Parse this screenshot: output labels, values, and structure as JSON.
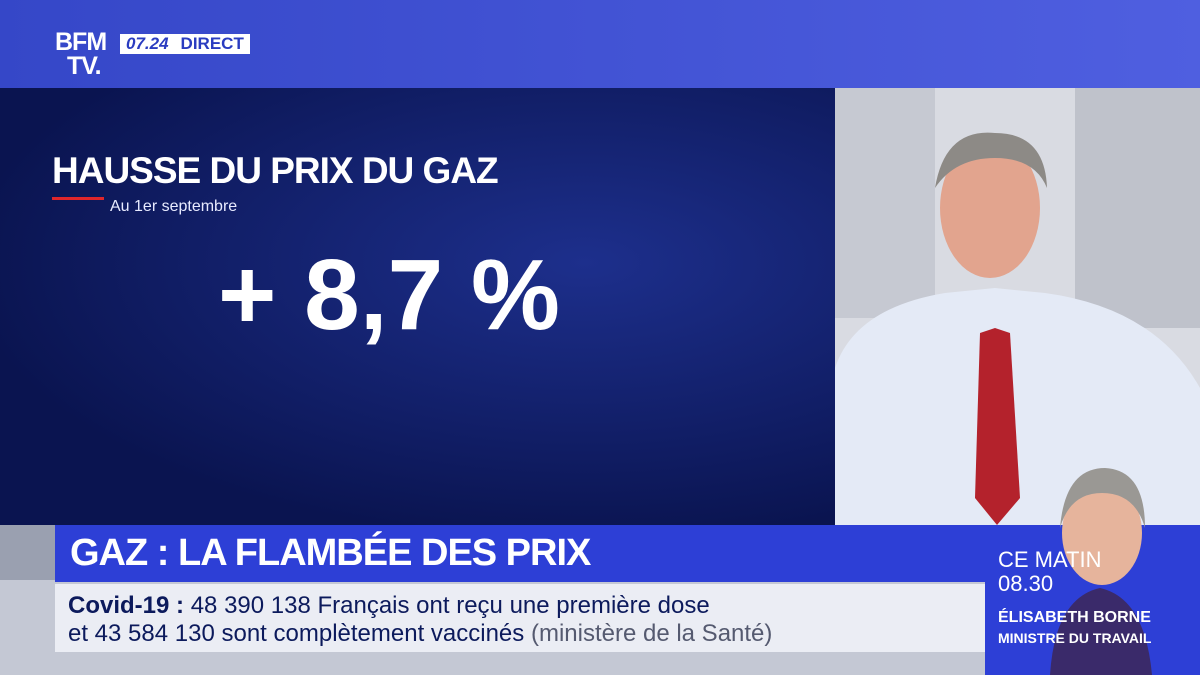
{
  "logo": {
    "line1": "BFM",
    "line2": "TV."
  },
  "status": {
    "time": "07.24",
    "live": "DIRECT"
  },
  "graphic": {
    "title": "HAUSSE DU PRIX DU GAZ",
    "subtitle": "Au 1er septembre",
    "figure": "+ 8,7 %"
  },
  "headline": "GAZ : LA FLAMBÉE DES PRIX",
  "ticker": {
    "label": "Covid-19",
    "separator": ":",
    "line1": "48 390 138 Français ont reçu une première dose",
    "line2": "et 43 584 130 sont complètement vaccinés",
    "source": "(ministère de la Santé)"
  },
  "guest": {
    "slot": "CE MATIN",
    "time": "08.30",
    "name": "ÉLISABETH BORNE",
    "role": "MINISTRE DU TRAVAIL"
  }
}
